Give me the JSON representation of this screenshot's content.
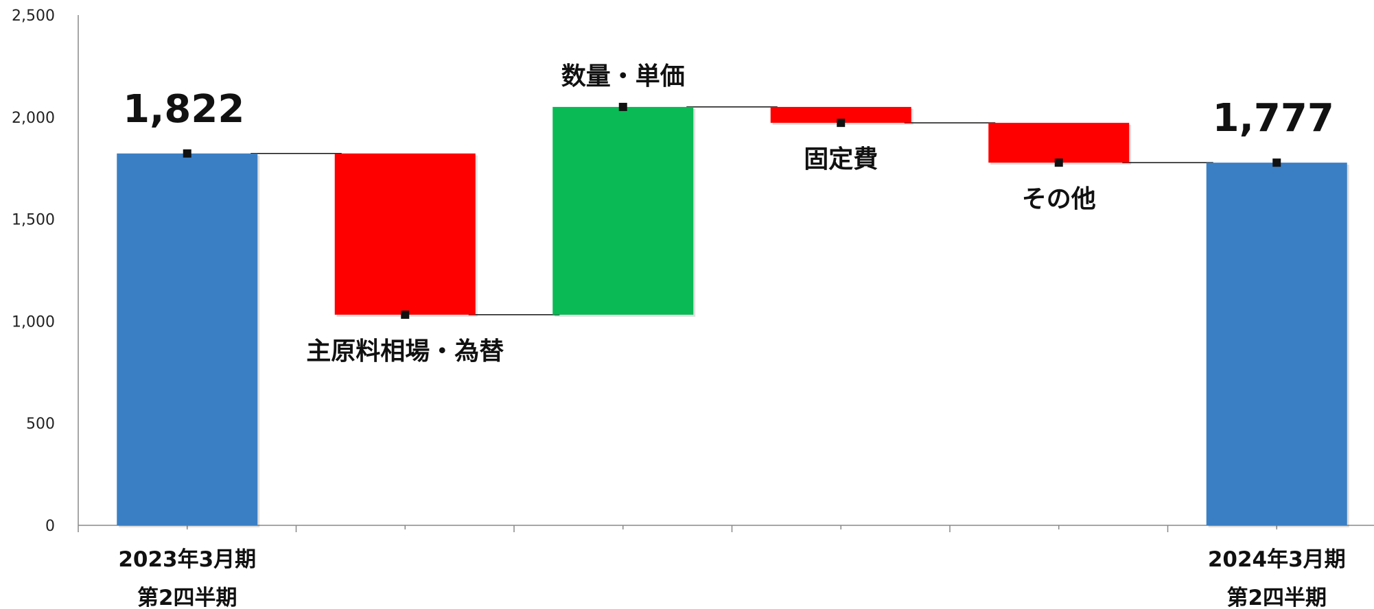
{
  "chart_data": {
    "type": "bar",
    "subtype": "waterfall",
    "ylim": [
      0,
      2500
    ],
    "yticks": [
      "0",
      "500",
      "1,000",
      "1,500",
      "2,000",
      "2,500"
    ],
    "grid": false,
    "legend": "none",
    "steps": [
      {
        "name": "2023年3月期 第2四半期",
        "tick_label": [
          "2023年3月期",
          "第2四半期"
        ],
        "kind": "total",
        "start": 0,
        "end": 1822,
        "value_label": "1,822",
        "label": ""
      },
      {
        "name": "主原料相場・為替",
        "tick_label": [],
        "kind": "decrease",
        "start": 1822,
        "end": 1032,
        "value_label": "",
        "label": "主原料相場・為替"
      },
      {
        "name": "数量・単価",
        "tick_label": [],
        "kind": "increase",
        "start": 1032,
        "end": 2050,
        "value_label": "",
        "label": "数量・単価"
      },
      {
        "name": "固定費",
        "tick_label": [],
        "kind": "decrease",
        "start": 2050,
        "end": 1972,
        "value_label": "",
        "label": "固定費"
      },
      {
        "name": "その他",
        "tick_label": [],
        "kind": "decrease",
        "start": 1972,
        "end": 1777,
        "value_label": "",
        "label": "その他"
      },
      {
        "name": "2024年3月期 第2四半期",
        "tick_label": [
          "2024年3月期",
          "第2四半期"
        ],
        "kind": "total",
        "start": 0,
        "end": 1777,
        "value_label": "1,777",
        "label": ""
      }
    ],
    "colors": {
      "total": "#3a7fc4",
      "decrease": "#ff0000",
      "increase": "#09ba55"
    }
  }
}
